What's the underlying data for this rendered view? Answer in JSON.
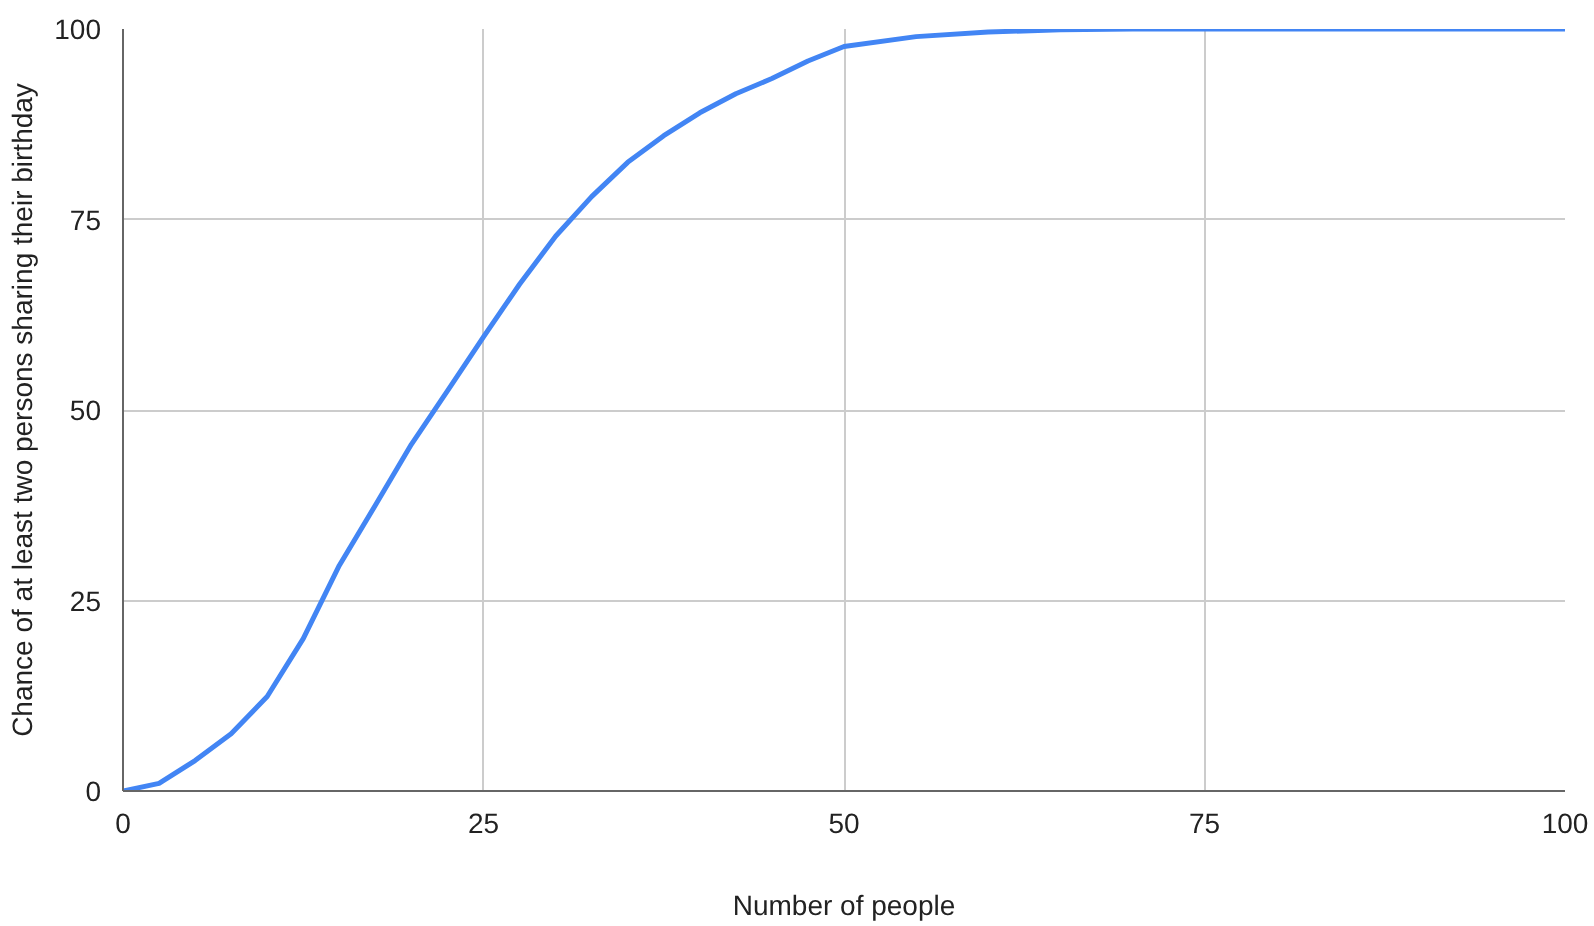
{
  "chart_data": {
    "type": "line",
    "xlabel": "Number of people",
    "ylabel": "Chance of at least two persons sharing their birthday",
    "x": [
      0,
      2.5,
      5,
      7.5,
      10,
      12.5,
      15,
      17.5,
      20,
      22.5,
      25,
      27.5,
      30,
      32.5,
      35,
      37.5,
      40,
      42.5,
      45,
      47.5,
      50,
      55,
      60,
      65,
      70,
      75,
      100
    ],
    "series": [
      {
        "color": "#4285f4",
        "values": [
          0,
          1,
          4,
          7.5,
          12.4,
          20,
          29.6,
          37.5,
          45.5,
          52.5,
          59.6,
          66.5,
          72.8,
          78,
          82.5,
          86,
          89,
          91.5,
          93.5,
          95.8,
          97.7,
          99,
          99.6,
          99.9,
          100,
          100,
          100
        ]
      }
    ],
    "xlim": [
      0,
      100
    ],
    "ylim": [
      0,
      100
    ],
    "xticks": [
      0,
      25,
      50,
      75,
      100
    ],
    "yticks": [
      0,
      25,
      50,
      75,
      100
    ],
    "grid": true,
    "marker": "none",
    "line_style": "solid"
  }
}
